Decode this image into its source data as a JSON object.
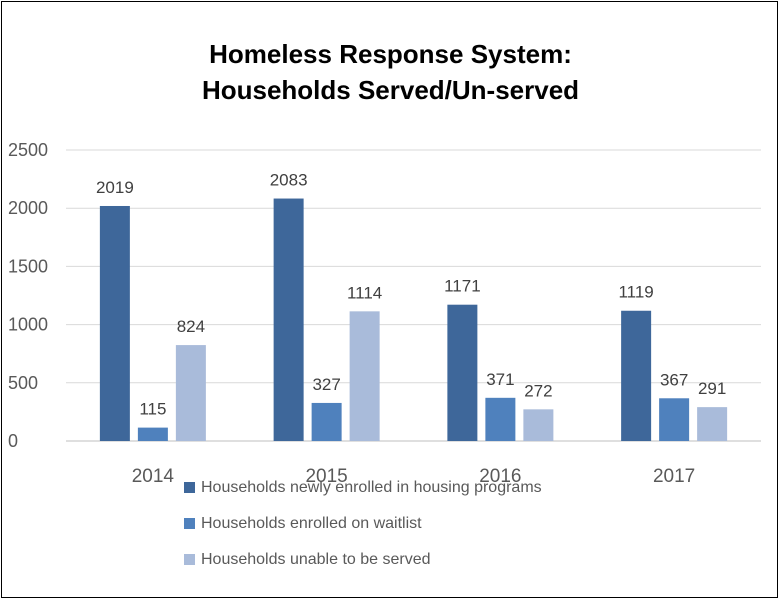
{
  "chart_data": {
    "type": "bar",
    "title_lines": [
      "Homeless Response System:",
      "Households Served/Un-served"
    ],
    "categories": [
      "2014",
      "2015",
      "2016",
      "2017"
    ],
    "series": [
      {
        "name": "Households newly enrolled in housing programs",
        "values": [
          2019,
          2083,
          1171,
          1119
        ],
        "color": "#3e679a"
      },
      {
        "name": "Households enrolled on waitlist",
        "values": [
          115,
          327,
          371,
          367
        ],
        "color": "#4f81bd"
      },
      {
        "name": "Households unable to be served",
        "values": [
          824,
          1114,
          272,
          291
        ],
        "color": "#a9bbda"
      }
    ],
    "y_ticks": [
      "0",
      "500",
      "1000",
      "1500",
      "2000",
      "2500"
    ],
    "ylim": [
      0,
      2500
    ],
    "grid": true,
    "legend_position": "bottom"
  }
}
